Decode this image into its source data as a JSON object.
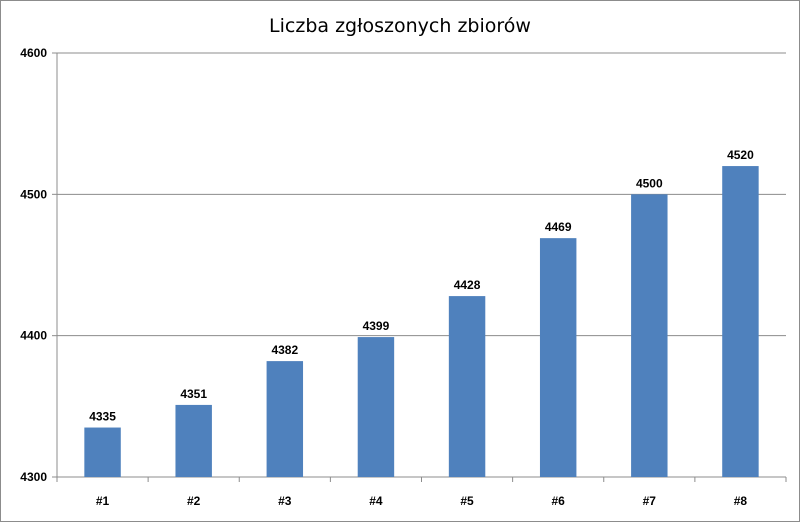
{
  "chart_data": {
    "type": "bar",
    "title": "Liczba zgłoszonych zbiorów",
    "xlabel": "",
    "ylabel": "",
    "categories": [
      "#1",
      "#2",
      "#3",
      "#4",
      "#5",
      "#6",
      "#7",
      "#8"
    ],
    "values": [
      4335,
      4351,
      4382,
      4399,
      4428,
      4469,
      4500,
      4520
    ],
    "ylim": [
      4300,
      4600
    ],
    "yticks": [
      4300,
      4400,
      4500,
      4600
    ],
    "grid": true,
    "legend": "none",
    "bar_color": "#4f81bd"
  }
}
